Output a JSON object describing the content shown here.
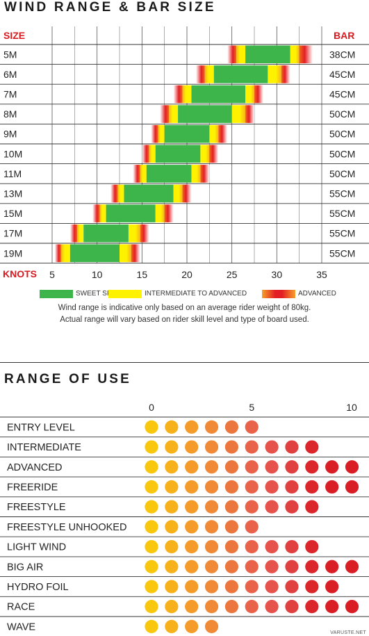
{
  "wind_chart": {
    "title": "WIND RANGE & BAR SIZE",
    "size_header": "SIZE",
    "bar_header": "BAR",
    "knots_label": "KNOTS",
    "legend": [
      {
        "label": "SWEET SPOT",
        "color": "#3db54a"
      },
      {
        "label": "INTERMEDIATE TO ADVANCED",
        "color": "#fff200"
      },
      {
        "label": "ADVANCED",
        "color": "#e31e24"
      }
    ],
    "note_lines": [
      "Wind range is indicative only based on an average rider weight of 80kg.",
      "Actual range will vary based on rider skill level and type of board used."
    ]
  },
  "use_chart": {
    "title": "RANGE OF USE",
    "scale_labels": [
      "0",
      "5",
      "10"
    ]
  },
  "watermark": "VARUSTE.NET",
  "chart_data": [
    {
      "type": "range-bar",
      "title": "WIND RANGE & BAR SIZE",
      "xlabel": "KNOTS",
      "x_ticks": [
        5,
        10,
        15,
        20,
        25,
        30,
        35
      ],
      "xlim": [
        5,
        35
      ],
      "colors": {
        "sweet": "#3db54a",
        "intermediate": "#fff200",
        "advanced": "#e31e24"
      },
      "rows": [
        {
          "size": "5M",
          "bar": "38CM",
          "adv_start": 24.5,
          "int_start": 25.5,
          "sweet_start": 26.5,
          "sweet_end": 31.5,
          "int_end": 32.5,
          "adv_end": 34.0
        },
        {
          "size": "6M",
          "bar": "45CM",
          "adv_start": 21.0,
          "int_start": 22.0,
          "sweet_start": 23.0,
          "sweet_end": 29.0,
          "int_end": 30.5,
          "adv_end": 31.5
        },
        {
          "size": "7M",
          "bar": "45CM",
          "adv_start": 18.5,
          "int_start": 19.5,
          "sweet_start": 20.5,
          "sweet_end": 26.5,
          "int_end": 27.5,
          "adv_end": 28.5
        },
        {
          "size": "8M",
          "bar": "50CM",
          "adv_start": 17.0,
          "int_start": 18.0,
          "sweet_start": 19.0,
          "sweet_end": 25.0,
          "int_end": 26.5,
          "adv_end": 27.5
        },
        {
          "size": "9M",
          "bar": "50CM",
          "adv_start": 16.0,
          "int_start": 16.8,
          "sweet_start": 17.5,
          "sweet_end": 22.5,
          "int_end": 23.5,
          "adv_end": 24.5
        },
        {
          "size": "10M",
          "bar": "50CM",
          "adv_start": 15.0,
          "int_start": 15.8,
          "sweet_start": 16.5,
          "sweet_end": 21.5,
          "int_end": 22.5,
          "adv_end": 23.5
        },
        {
          "size": "11M",
          "bar": "50CM",
          "adv_start": 14.0,
          "int_start": 14.8,
          "sweet_start": 15.5,
          "sweet_end": 20.5,
          "int_end": 21.5,
          "adv_end": 22.5
        },
        {
          "size": "13M",
          "bar": "55CM",
          "adv_start": 11.5,
          "int_start": 12.3,
          "sweet_start": 13.0,
          "sweet_end": 18.5,
          "int_end": 19.5,
          "adv_end": 20.5
        },
        {
          "size": "15M",
          "bar": "55CM",
          "adv_start": 9.5,
          "int_start": 10.3,
          "sweet_start": 11.0,
          "sweet_end": 16.5,
          "int_end": 17.5,
          "adv_end": 18.5
        },
        {
          "size": "17M",
          "bar": "55CM",
          "adv_start": 7.0,
          "int_start": 7.8,
          "sweet_start": 8.5,
          "sweet_end": 13.5,
          "int_end": 14.8,
          "adv_end": 15.8
        },
        {
          "size": "19M",
          "bar": "55CM",
          "adv_start": 5.3,
          "int_start": 6.0,
          "sweet_start": 7.0,
          "sweet_end": 12.5,
          "int_end": 13.8,
          "adv_end": 14.8
        }
      ]
    },
    {
      "type": "dot-rating",
      "title": "RANGE OF USE",
      "scale": [
        0,
        10
      ],
      "scale_ticks": [
        0,
        5,
        10
      ],
      "dot_colors": [
        "#f9c80e",
        "#f7b21b",
        "#f59b2a",
        "#f08a36",
        "#ec773e",
        "#e9634a",
        "#e5534c",
        "#e0403f",
        "#db262c",
        "#d91e26",
        "#d91e26"
      ],
      "rows": [
        {
          "label": "ENTRY LEVEL",
          "value": 6
        },
        {
          "label": "INTERMEDIATE",
          "value": 9
        },
        {
          "label": "ADVANCED",
          "value": 11
        },
        {
          "label": "FREERIDE",
          "value": 11
        },
        {
          "label": "FREESTYLE",
          "value": 9
        },
        {
          "label": "FREESTYLE UNHOOKED",
          "value": 6
        },
        {
          "label": "LIGHT WIND",
          "value": 9
        },
        {
          "label": "BIG AIR",
          "value": 11
        },
        {
          "label": "HYDRO FOIL",
          "value": 10
        },
        {
          "label": "RACE",
          "value": 11
        },
        {
          "label": "WAVE",
          "value": 4
        }
      ]
    }
  ]
}
